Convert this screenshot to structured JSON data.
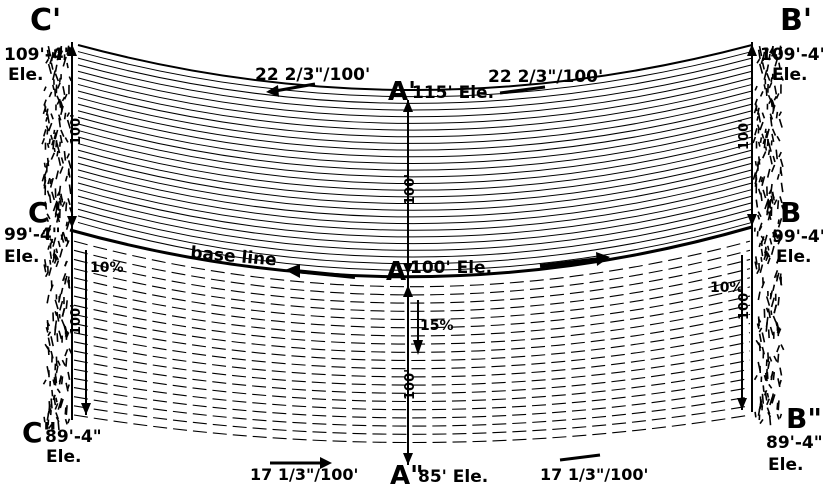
{
  "points": {
    "c_top": "C'",
    "b_top": "B'",
    "a_top": "A'",
    "c_mid": "C",
    "b_mid": "B",
    "a_mid": "A",
    "c_bot": "C\"",
    "b_bot": "B\"",
    "a_bot": "A\""
  },
  "elevations": {
    "c_top": "109'-4\"",
    "b_top": "109'-4\"",
    "a_top": "115' Ele.",
    "c_mid": "99'-4\"",
    "b_mid": "99'-4\"",
    "a_mid": "100' Ele.",
    "c_bot": "89'-4\"",
    "b_bot": "89'-4\"",
    "a_bot": "85' Ele.",
    "ele": "Ele."
  },
  "grades": {
    "top_left": "22 2/3\"/100'",
    "top_right": "22 2/3\"/100'",
    "bottom_left": "17 1/3\"/100'",
    "bottom_right": "17 1/3\"/100'",
    "left_slope": "10%",
    "right_slope": "10%",
    "center_slope": "15%"
  },
  "dimensions": {
    "left_upper": "100'",
    "left_lower": "100'",
    "right_upper": "100'",
    "right_lower": "100'",
    "center_upper": "100'",
    "center_lower": "100'"
  },
  "base_line": "base line"
}
